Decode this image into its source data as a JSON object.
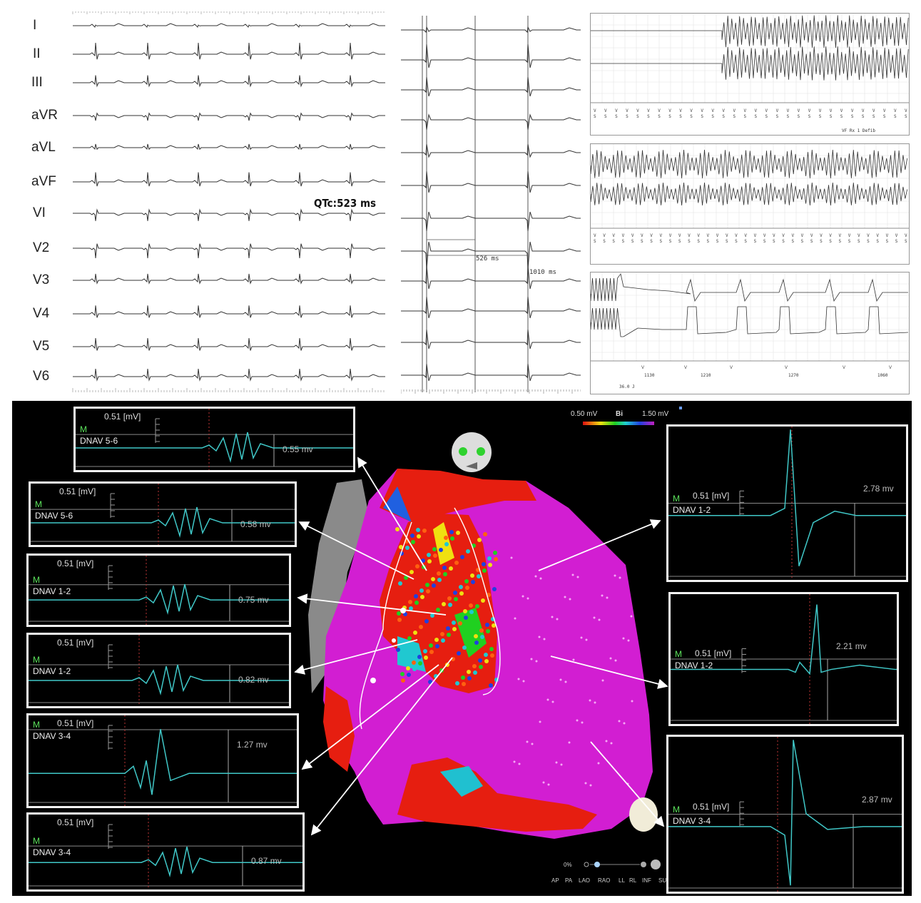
{
  "ecg12": {
    "leads": [
      "I",
      "II",
      "III",
      "aVR",
      "aVL",
      "aVF",
      "VI",
      "V2",
      "V3",
      "V4",
      "V5",
      "V6"
    ],
    "qtc_label": "QTc:523 ms"
  },
  "ecg_zoom": {
    "interval_1": "526 ms",
    "interval_2": "1010 ms"
  },
  "icd": {
    "strip1_note": "VF Rx 1 Defib",
    "strip3_intervals": [
      "1130",
      "1210",
      "1270",
      "1060"
    ],
    "strip3_energy": "36.0 J"
  },
  "voltage_map": {
    "legend_min": "0.50 mV",
    "legend_title": "Bi",
    "legend_max": "1.50 mV",
    "transparency": "0%",
    "views": [
      "AP",
      "PA",
      "LAO",
      "RAO",
      "LL",
      "RL",
      "INF",
      "SU"
    ]
  },
  "electrograms": [
    {
      "scale": "0.51  [mV]",
      "marker": "M",
      "channel": "DNAV 5-6",
      "amplitude": "0.55 mv"
    },
    {
      "scale": "0.51  [mV]",
      "marker": "M",
      "channel": "DNAV 5-6",
      "amplitude": "0.58 mv"
    },
    {
      "scale": "0.51  [mV]",
      "marker": "M",
      "channel": "DNAV 1-2",
      "amplitude": "0.75 mv"
    },
    {
      "scale": "0.51  [mV]",
      "marker": "M",
      "channel": "DNAV 1-2",
      "amplitude": "0.82 mv"
    },
    {
      "scale": "0.51  [mV]",
      "marker": "M",
      "channel": "DNAV 3-4",
      "amplitude": "1.27 mv"
    },
    {
      "scale": "0.51  [mV]",
      "marker": "M",
      "channel": "DNAV 3-4",
      "amplitude": "0.87 mv"
    },
    {
      "scale": "0.51  [mV]",
      "marker": "M",
      "channel": "DNAV 1-2",
      "amplitude": "2.78 mv"
    },
    {
      "scale": "0.51  [mV]",
      "marker": "M",
      "channel": "DNAV 1-2",
      "amplitude": "2.21 mv"
    },
    {
      "scale": "0.51  [mV]",
      "marker": "M",
      "channel": "DNAV 3-4",
      "amplitude": "2.87 mv"
    }
  ],
  "colors": {
    "trace_egm": "#40c8c8",
    "trace_ecg": "#333333",
    "scar_red": "#e61e10",
    "healthy_magenta": "#d21ed2"
  }
}
